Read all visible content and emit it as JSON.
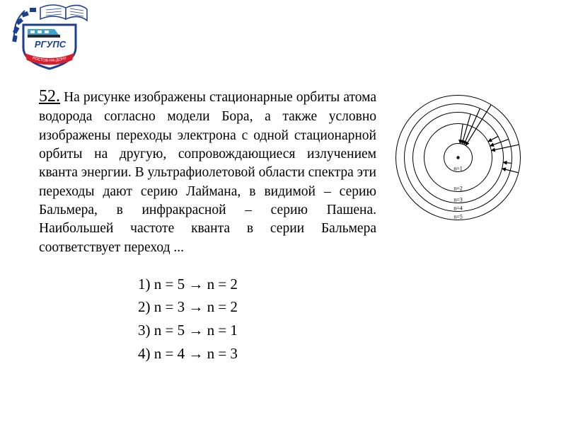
{
  "logo": {
    "abbrev": "РГУПС",
    "ring_text": "РОСТОВ-НА-ДОНУ",
    "colors": {
      "blue": "#1b3f8f",
      "white": "#ffffff",
      "red": "#d81e2c",
      "cyan": "#3aa4d6",
      "dark": "#2b2b2b"
    }
  },
  "question": {
    "number": "52.",
    "body": "На рисунке изображены стационарные орбиты атома водорода согласно модели Бора, а также условно изображены переходы электрона с одной стационарной орбиты на другую, сопровождающиеся излучением кванта энергии. В ультрафиолетовой области спектра эти переходы дают серию Лаймана, в видимой – серию Бальмера, в инфракрасной – серию Пашена. Наибольшей частоте кванта в серии Бальмера соответствует переход ..."
  },
  "diagram": {
    "type": "diagram",
    "background_color": "#ffffff",
    "stroke_color": "#000000",
    "orbits": [
      {
        "n": 1,
        "r": 20,
        "label": "n=1"
      },
      {
        "n": 2,
        "r": 48,
        "label": "n=2"
      },
      {
        "n": 3,
        "r": 64,
        "label": "n=3"
      },
      {
        "n": 4,
        "r": 76,
        "label": "n=4"
      },
      {
        "n": 5,
        "r": 88,
        "label": "n=5"
      }
    ],
    "center_dot_r": 2.2,
    "label_fontsize": 8,
    "stroke_width": 1,
    "arrows_lyman": [
      {
        "from_r": 48,
        "to_r": 20,
        "angle": -82
      },
      {
        "from_r": 64,
        "to_r": 20,
        "angle": -74
      },
      {
        "from_r": 76,
        "to_r": 20,
        "angle": -66
      },
      {
        "from_r": 88,
        "to_r": 20,
        "angle": -58
      }
    ],
    "arrows_balmer": [
      {
        "from_r": 64,
        "to_r": 48,
        "angle": -28
      },
      {
        "from_r": 76,
        "to_r": 48,
        "angle": -20
      },
      {
        "from_r": 88,
        "to_r": 48,
        "angle": -12
      }
    ],
    "arrows_paschen": [
      {
        "from_r": 76,
        "to_r": 64,
        "angle": 6
      },
      {
        "from_r": 88,
        "to_r": 64,
        "angle": 14
      }
    ]
  },
  "answers": [
    {
      "num": "1)",
      "from": "n = 5",
      "to": "n = 2"
    },
    {
      "num": "2)",
      "from": "n = 3",
      "to": "n = 2"
    },
    {
      "num": "3)",
      "from": "n = 5",
      "to": "n = 1"
    },
    {
      "num": "4)",
      "from": "n = 4",
      "to": "n = 3"
    }
  ],
  "arrow_glyph": "→"
}
